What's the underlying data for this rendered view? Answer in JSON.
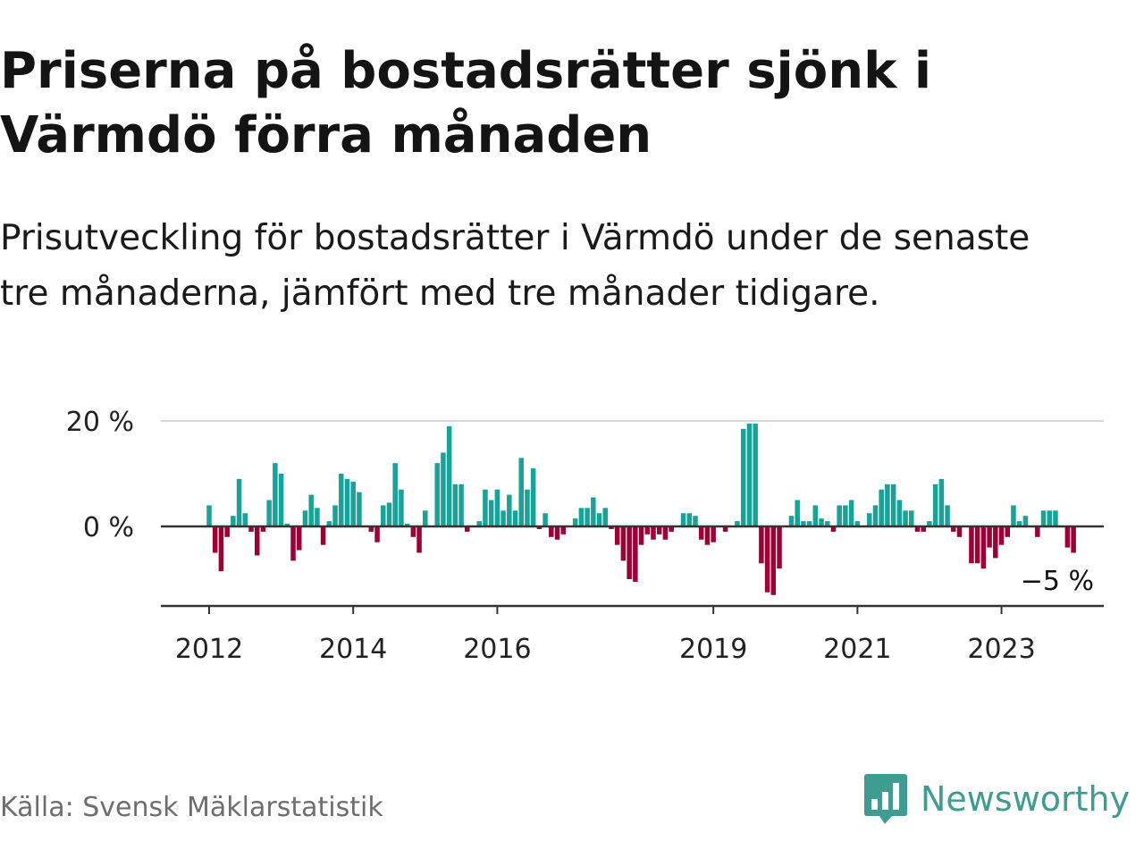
{
  "title": "Priserna på bostadsrätter sjönk i Värmdö förra månaden",
  "subtitle": "Prisutveckling för bostadsrätter i Värmdö under de senaste tre månaderna, jämfört med tre månader tidigare.",
  "source": "Källa: Svensk Mäklarstatistik",
  "brand": {
    "name": "Newsworthy",
    "icon": "newsworthy-logo-icon"
  },
  "colors": {
    "positive": "#17a398",
    "negative": "#9e0036",
    "grid": "#d9d9d9",
    "axis": "#333333",
    "brand": "#3f9c90"
  },
  "chart_data": {
    "type": "bar",
    "unit": "%",
    "y_ticks": [
      0,
      20
    ],
    "y_tick_labels": [
      "0 %",
      "20 %"
    ],
    "ylim": [
      -15,
      20
    ],
    "x_range": [
      2011.33,
      2024.42
    ],
    "x_ticks": [
      {
        "value": 2012,
        "label": "2012"
      },
      {
        "value": 2014,
        "label": "2014"
      },
      {
        "value": 2016,
        "label": "2016"
      },
      {
        "value": 2019,
        "label": "2019"
      },
      {
        "value": 2021,
        "label": "2021"
      },
      {
        "value": 2023,
        "label": "2023"
      }
    ],
    "start": 2012.0,
    "step": 0.08333,
    "end_label": "−5 %",
    "values": [
      4,
      -5,
      -8.5,
      -2,
      2,
      9,
      2.5,
      -1,
      -5.5,
      -1,
      5,
      12,
      10,
      0.5,
      -6.5,
      -4.5,
      3,
      6,
      3.5,
      -3.5,
      1,
      4,
      10,
      9,
      8.5,
      6.5,
      0,
      -1,
      -3,
      4,
      4.5,
      12,
      7,
      0.5,
      -2,
      -5,
      3,
      0,
      12,
      14,
      19,
      8,
      8,
      -1,
      0,
      1,
      7,
      5,
      7,
      3,
      6,
      3,
      13,
      7,
      11,
      -0.5,
      2.5,
      -2,
      -2.5,
      -1.5,
      0,
      1.5,
      3.5,
      3.5,
      5.5,
      2.5,
      3.5,
      -0.5,
      -3.5,
      -6.5,
      -10,
      -10.5,
      -3.5,
      -1.5,
      -2.5,
      -1.5,
      -2.5,
      -1,
      0,
      2.5,
      2.5,
      2,
      -2.5,
      -3.5,
      -3,
      0,
      -1,
      0,
      1,
      18.5,
      19.5,
      19.5,
      -7,
      -12.5,
      -13,
      -8,
      0,
      2,
      5,
      1,
      1,
      4,
      1.5,
      1,
      -1,
      4,
      4,
      5,
      1,
      0,
      2.5,
      4,
      7,
      8,
      8,
      5,
      3,
      3,
      -1,
      -1,
      1,
      8,
      9,
      4,
      -1,
      -2,
      0,
      -7,
      -7,
      -8,
      -4,
      -6,
      -3.5,
      -2,
      4,
      1,
      2,
      0,
      -2,
      3,
      3,
      3,
      0,
      -4,
      -5
    ]
  }
}
